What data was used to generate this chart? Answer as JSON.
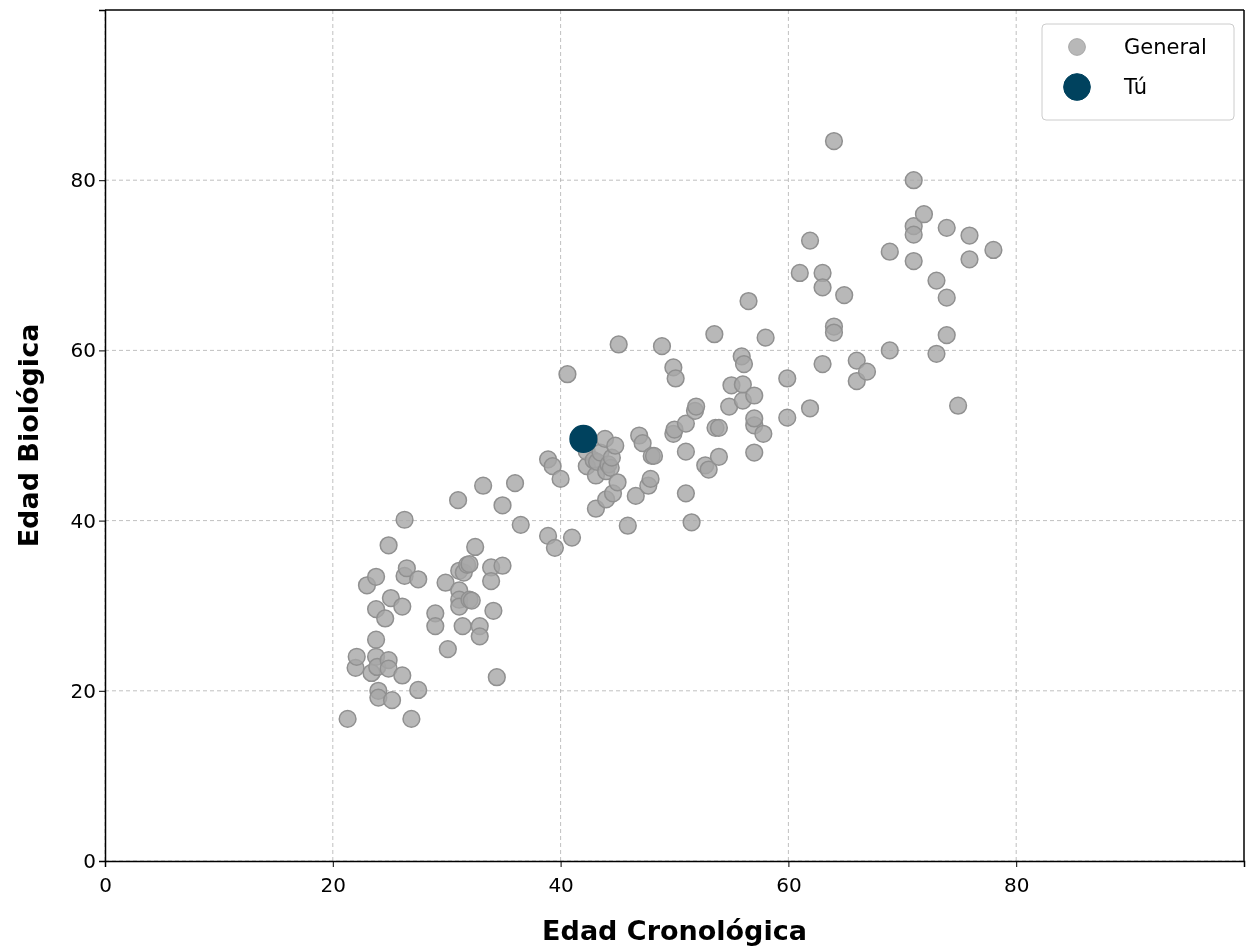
{
  "chart_data": {
    "type": "scatter",
    "xlabel": "Edad Cronológica",
    "ylabel": "Edad Biológica",
    "xlim": [
      0,
      100
    ],
    "ylim": [
      0,
      100
    ],
    "xticks": [
      0,
      20,
      40,
      60,
      80
    ],
    "yticks": [
      0,
      20,
      40,
      60,
      80
    ],
    "grid": true,
    "legend": "top right",
    "marker": "circle",
    "series": [
      {
        "name": "General",
        "color": "#a6a6a6",
        "x": [
          21.3,
          22.0,
          22.1,
          23.0,
          23.4,
          23.8,
          23.8,
          23.8,
          23.8,
          23.9,
          24.0,
          24.0,
          24.6,
          24.9,
          25.1,
          24.9,
          24.9,
          25.2,
          26.1,
          26.1,
          26.3,
          26.3,
          26.5,
          26.9,
          27.5,
          27.5,
          29.0,
          29.0,
          29.9,
          30.1,
          31.0,
          31.1,
          31.1,
          31.1,
          31.1,
          31.4,
          31.5,
          31.8,
          32.0,
          32.0,
          32.2,
          32.5,
          32.9,
          32.9,
          33.2,
          33.9,
          33.9,
          34.1,
          34.4,
          34.9,
          34.9,
          36.0,
          36.5,
          38.9,
          38.9,
          39.3,
          39.5,
          40.0,
          40.6,
          41.0,
          42.3,
          42.3,
          42.9,
          43.1,
          43.1,
          43.2,
          43.5,
          43.9,
          44.0,
          44.0,
          44.2,
          44.4,
          44.5,
          44.6,
          44.8,
          45.0,
          45.1,
          45.9,
          46.6,
          46.9,
          47.2,
          47.7,
          47.9,
          48.0,
          48.2,
          48.9,
          49.9,
          49.9,
          50.0,
          50.1,
          51.0,
          51.0,
          51.0,
          51.5,
          51.8,
          51.9,
          52.7,
          53.0,
          53.5,
          53.6,
          53.9,
          53.9,
          54.8,
          55.0,
          55.9,
          56.0,
          56.0,
          56.1,
          56.5,
          57.0,
          57.0,
          57.0,
          57.0,
          57.8,
          58.0,
          59.9,
          59.9,
          61.0,
          61.9,
          61.9,
          63.0,
          63.0,
          63.0,
          64.0,
          64.0,
          64.0,
          64.9,
          66.0,
          66.0,
          66.9,
          68.9,
          68.9,
          71.0,
          71.0,
          71.0,
          71.0,
          71.9,
          73.0,
          73.0,
          73.9,
          73.9,
          73.9,
          74.9,
          75.9,
          75.9,
          78.0
        ],
        "values": [
          16.7,
          22.7,
          24.0,
          32.4,
          22.1,
          33.4,
          29.6,
          26.0,
          24.0,
          22.8,
          20.0,
          19.2,
          28.5,
          37.1,
          30.9,
          23.6,
          22.6,
          18.9,
          21.8,
          29.9,
          40.1,
          33.5,
          34.4,
          16.7,
          33.1,
          20.1,
          29.1,
          27.6,
          32.7,
          24.9,
          42.4,
          34.1,
          31.8,
          30.7,
          29.9,
          27.6,
          33.9,
          34.8,
          34.9,
          30.7,
          30.6,
          36.9,
          27.6,
          26.4,
          44.1,
          34.5,
          32.9,
          29.4,
          21.6,
          41.8,
          34.7,
          44.4,
          39.5,
          38.2,
          47.2,
          46.4,
          36.8,
          44.9,
          57.2,
          38.0,
          46.4,
          48.1,
          47.1,
          45.3,
          41.4,
          46.9,
          48.0,
          49.6,
          45.8,
          42.5,
          46.6,
          46.2,
          47.4,
          43.2,
          48.8,
          44.5,
          60.7,
          39.4,
          42.9,
          50.0,
          49.1,
          44.1,
          44.9,
          47.6,
          47.6,
          60.5,
          58.0,
          50.2,
          50.7,
          56.7,
          48.1,
          51.4,
          43.2,
          39.8,
          52.9,
          53.4,
          46.5,
          46.0,
          61.9,
          50.9,
          50.9,
          47.5,
          53.4,
          55.9,
          59.3,
          54.1,
          56.0,
          58.4,
          65.8,
          54.7,
          51.2,
          52.0,
          48.0,
          50.2,
          61.5,
          56.7,
          52.1,
          69.1,
          72.9,
          53.2,
          69.1,
          67.4,
          58.4,
          84.6,
          62.8,
          62.1,
          66.5,
          58.8,
          56.4,
          57.5,
          71.6,
          60.0,
          80.0,
          74.6,
          73.6,
          70.5,
          76.0,
          68.2,
          59.6,
          74.4,
          66.2,
          61.8,
          53.5,
          73.5,
          70.7,
          71.8
        ]
      },
      {
        "name": "Tú",
        "color": "#00425e",
        "x": [
          42.0
        ],
        "values": [
          49.6
        ]
      }
    ]
  }
}
